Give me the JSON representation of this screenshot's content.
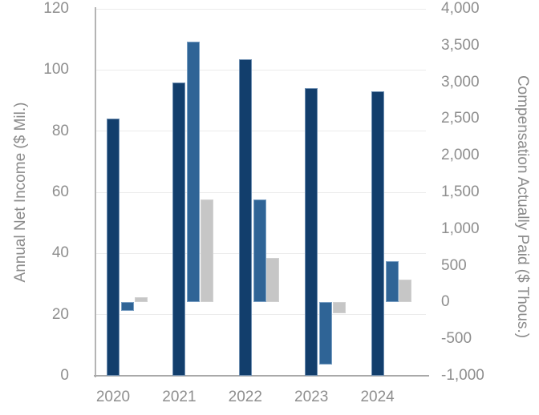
{
  "chart_data": {
    "type": "bar",
    "title": "",
    "legend": "none",
    "grid": "horizontal",
    "categories": [
      "2020",
      "2021",
      "2022",
      "2023",
      "2024"
    ],
    "left_axis": {
      "label": "Annual Net Income ($ Mil.)",
      "min": 0,
      "max": 120,
      "step": 20,
      "tick_labels": [
        "0",
        "20",
        "40",
        "60",
        "80",
        "100",
        "120"
      ]
    },
    "right_axis": {
      "label": "Compensation Actually Paid ($ Thous.)",
      "min": -1000,
      "max": 4000,
      "step": 500,
      "tick_labels": [
        "-1,000",
        "-500",
        "0",
        "500",
        "1,000",
        "1,500",
        "2,000",
        "2,500",
        "3,000",
        "3,500",
        "4,000"
      ]
    },
    "series": [
      {
        "name": "annual-net-income",
        "axis": "left",
        "color": "#123e6c",
        "edge_color": "rgba(170,197,224,0.6)",
        "values": [
          84,
          96,
          103.5,
          94,
          93
        ]
      },
      {
        "name": "compensation-actually-paid-blue",
        "axis": "right",
        "color": "#2f6496",
        "edge_color": "rgba(170,197,224,0.6)",
        "values": [
          -120,
          3550,
          1400,
          -850,
          560
        ]
      },
      {
        "name": "compensation-actually-paid-gray",
        "axis": "right",
        "color": "#c6c6c6",
        "edge_color": "rgba(220,220,220,0.5)",
        "values": [
          75,
          1400,
          600,
          -150,
          310
        ]
      }
    ]
  },
  "colors": {
    "background": "#ffffff",
    "gridline": "#ebebeb",
    "x_axis_line": "#a9a9a9",
    "y_axis_line": "#b4b4b4",
    "tick_text": "#8e8e8e",
    "axis_title_text": "#8a8a8a"
  }
}
